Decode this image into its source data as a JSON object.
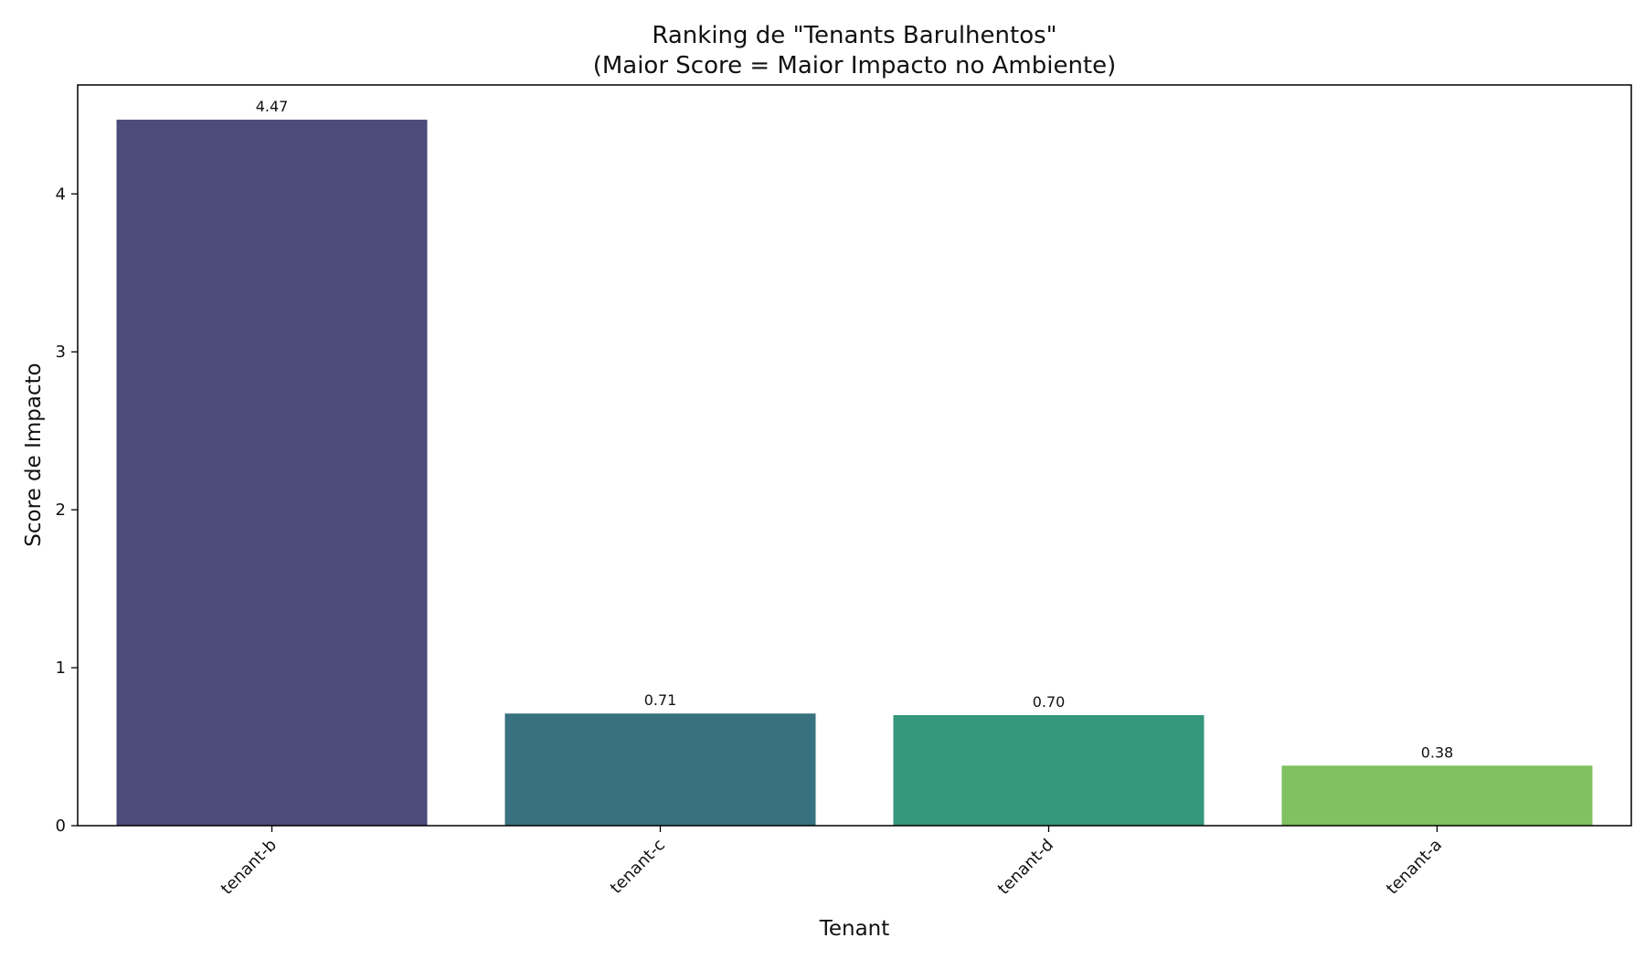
{
  "chart_data": {
    "type": "bar",
    "title": "Ranking de \"Tenants Barulhentos\"",
    "subtitle": "(Maior Score = Maior Impacto no Ambiente)",
    "xlabel": "Tenant",
    "ylabel": "Score de Impacto",
    "categories": [
      "tenant-b",
      "tenant-c",
      "tenant-d",
      "tenant-a"
    ],
    "values": [
      4.47,
      0.71,
      0.7,
      0.38
    ],
    "value_labels": [
      "4.47",
      "0.71",
      "0.70",
      "0.38"
    ],
    "colors": [
      "#4b4c79",
      "#38717f",
      "#35977c",
      "#80c160"
    ],
    "ylim": [
      0,
      4.69
    ],
    "yticks": [
      0,
      1,
      2,
      3,
      4
    ],
    "grid": false,
    "legend": false
  }
}
